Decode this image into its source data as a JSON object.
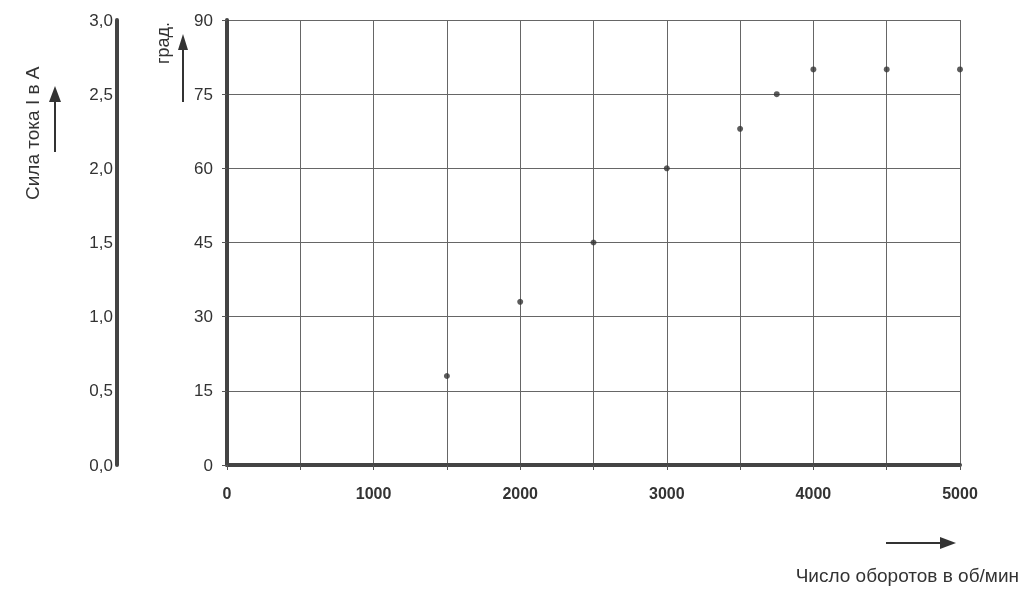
{
  "chart_data": {
    "type": "scatter",
    "xlabel": "Число оборотов в об/мин",
    "ylabel": "град.",
    "y2label": "Сила тока I в A",
    "x": [
      1500,
      2000,
      2500,
      3000,
      3500,
      3750,
      4000,
      4500,
      5000
    ],
    "series": [
      {
        "color": "#333333",
        "values": [
          18,
          33,
          45,
          60,
          68,
          75,
          80,
          80,
          80
        ]
      }
    ],
    "xlim": [
      0,
      5000
    ],
    "xticks": [
      0,
      {
        "value": 500,
        "label": null
      },
      1000,
      {
        "value": 1500,
        "label": null
      },
      2000,
      {
        "value": 2500,
        "label": null
      },
      3000,
      {
        "value": 3500,
        "label": null
      },
      4000,
      {
        "value": 4500,
        "label": null
      },
      5000
    ],
    "ylim": [
      0,
      90
    ],
    "yticks": [
      0,
      15,
      30,
      45,
      60,
      75,
      90
    ],
    "y2lim": [
      0,
      3
    ],
    "y2ticks": [
      {
        "value": 0,
        "label": "0,0"
      },
      {
        "value": 0.5,
        "label": "0,5"
      },
      {
        "value": 1,
        "label": "1,0"
      },
      {
        "value": 1.5,
        "label": "1,5"
      },
      {
        "value": 2,
        "label": "2,0"
      },
      {
        "value": 2.5,
        "label": "2,5"
      },
      {
        "value": 3,
        "label": "3,0"
      }
    ],
    "grid": true,
    "marker": "circle"
  }
}
